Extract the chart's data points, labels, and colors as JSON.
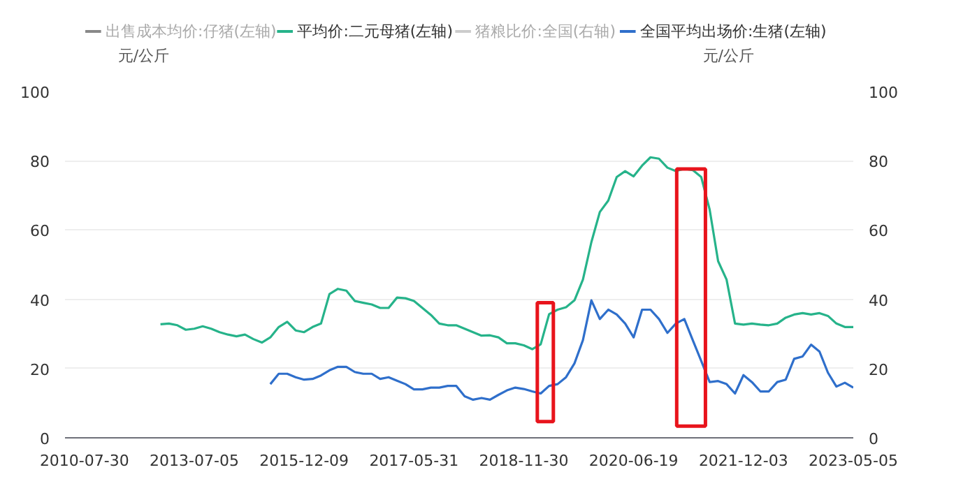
{
  "chart_data": {
    "type": "line",
    "categories": [
      "2010-07-30",
      null,
      null,
      null,
      null,
      null,
      null,
      null,
      null,
      null,
      null,
      null,
      null,
      "2013-07-05",
      null,
      null,
      null,
      null,
      null,
      null,
      null,
      null,
      null,
      null,
      null,
      null,
      "2015-12-09",
      null,
      null,
      null,
      null,
      null,
      null,
      null,
      null,
      null,
      null,
      null,
      null,
      "2017-05-31",
      null,
      null,
      null,
      null,
      null,
      null,
      null,
      null,
      null,
      null,
      null,
      null,
      "2018-11-30",
      null,
      null,
      null,
      null,
      null,
      null,
      null,
      null,
      null,
      null,
      null,
      null,
      "2020-06-19",
      null,
      null,
      null,
      null,
      null,
      null,
      null,
      null,
      null,
      null,
      null,
      null,
      "2021-12-03",
      null,
      null,
      null,
      null,
      null,
      null,
      null,
      null,
      null,
      null,
      null,
      null,
      "2023-05-05"
    ],
    "series": [
      {
        "name": "出售成本均价:仔猪(左轴)",
        "color": "#888888",
        "values": [
          null,
          null,
          null,
          null,
          null,
          null,
          null,
          null,
          null,
          null,
          null,
          null,
          null,
          null,
          null,
          null,
          null,
          null,
          null,
          null,
          null,
          null,
          null,
          null,
          null,
          null,
          null,
          null,
          null,
          null,
          null,
          null,
          null,
          null,
          null,
          null,
          null,
          null,
          null,
          null,
          null,
          null,
          null,
          null,
          null,
          null,
          null,
          null,
          null,
          null,
          null,
          null,
          null,
          null,
          null,
          null,
          null,
          null,
          null,
          null,
          null,
          null,
          null,
          null,
          null,
          null,
          null,
          null,
          null,
          null,
          null,
          null,
          null,
          null,
          null,
          null,
          null,
          null,
          null,
          null,
          null,
          null,
          null,
          null,
          null,
          null,
          null,
          null,
          null,
          null,
          null,
          null
        ]
      },
      {
        "name": "平均价:二元母猪(左轴)",
        "color": "#26b38a",
        "values": [
          null,
          null,
          null,
          null,
          null,
          null,
          null,
          null,
          null,
          32.8,
          33,
          32.5,
          31.2,
          31.5,
          32.2,
          31.5,
          30.5,
          29.8,
          29.3,
          29.8,
          28.5,
          27.5,
          29,
          32,
          33.5,
          31,
          30.5,
          32,
          33,
          41.5,
          43,
          42.5,
          39.5,
          39,
          38.5,
          37.5,
          37.5,
          40.5,
          40.3,
          39.5,
          37.5,
          35.5,
          33,
          32.5,
          32.5,
          31.5,
          30.5,
          29.5,
          29.6,
          29,
          27.3,
          27.3,
          26.7,
          25.6,
          27,
          35.7,
          37,
          37.7,
          39.7,
          45.7,
          56.5,
          65.2,
          68.5,
          75.3,
          77,
          75.5,
          78.6,
          81,
          80.6,
          78,
          77,
          77.7,
          77.3,
          75.3,
          65.9,
          51,
          45.7,
          33,
          32.7,
          33,
          32.7,
          32.5,
          33,
          34.7,
          35.6,
          36,
          35.6,
          36,
          35.2,
          33,
          32,
          32
        ]
      },
      {
        "name": "猪粮比价:全国(右轴)",
        "color": "#cccccc",
        "values": [
          null,
          null,
          null,
          null,
          null,
          null,
          null,
          null,
          null,
          null,
          null,
          null,
          null,
          null,
          null,
          null,
          null,
          null,
          null,
          null,
          null,
          null,
          null,
          null,
          null,
          null,
          null,
          null,
          null,
          null,
          null,
          null,
          null,
          null,
          null,
          null,
          null,
          null,
          null,
          null,
          null,
          null,
          null,
          null,
          null,
          null,
          null,
          null,
          null,
          null,
          null,
          null,
          null,
          null,
          null,
          null,
          null,
          null,
          null,
          null,
          null,
          null,
          null,
          null,
          null,
          null,
          null,
          null,
          null,
          null,
          null,
          null,
          null,
          null,
          null,
          null,
          null,
          null,
          null,
          null,
          null,
          null,
          null,
          null,
          null,
          null,
          null,
          null,
          null,
          null,
          null,
          null
        ]
      },
      {
        "name": "全国平均出场价:生猪(左轴)",
        "color": "#2f6fcb",
        "values": [
          null,
          null,
          null,
          null,
          null,
          null,
          null,
          null,
          null,
          null,
          null,
          null,
          null,
          null,
          null,
          null,
          null,
          null,
          null,
          null,
          null,
          null,
          15.5,
          18.5,
          18.5,
          17.5,
          16.8,
          17,
          18,
          19.5,
          20.5,
          20.5,
          19,
          18.5,
          18.5,
          17,
          17.5,
          16.5,
          15.5,
          14,
          14,
          14.5,
          14.5,
          15,
          15,
          12,
          11,
          11.5,
          11,
          12.4,
          13.7,
          14.5,
          14.1,
          13.4,
          12.8,
          15,
          15.5,
          17.5,
          21.5,
          28.2,
          39.7,
          34.3,
          37,
          35.6,
          33,
          29,
          37,
          37,
          34.3,
          30.3,
          33,
          34.3,
          28.2,
          22.2,
          16.1,
          16.4,
          15.5,
          12.8,
          18.1,
          16.1,
          13.4,
          13.4,
          16.1,
          16.8,
          22.8,
          23.5,
          26.9,
          24.9,
          18.8,
          14.8,
          15.9,
          14.5
        ]
      }
    ],
    "ylabel": "元/公斤",
    "y2label": "元/公斤",
    "ylim": [
      0,
      100
    ],
    "yticks": [
      0,
      20,
      40,
      60,
      80,
      100
    ],
    "y2lim": [
      0,
      100
    ],
    "y2ticks": [
      0,
      20,
      40,
      60,
      80,
      100
    ],
    "grid": "y",
    "legend": "top",
    "marker": "none",
    "line_style": "solid"
  }
}
